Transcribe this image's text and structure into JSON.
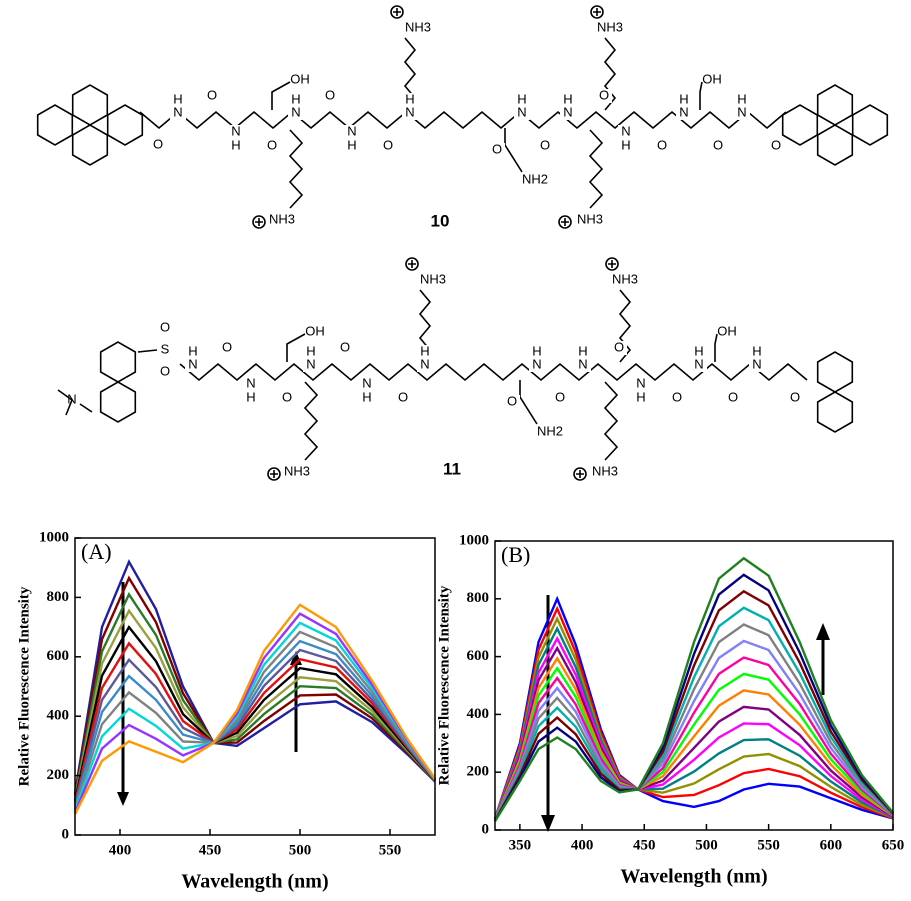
{
  "structures": [
    {
      "label": "10",
      "atoms": [
        "H",
        "N",
        "O",
        "H",
        "N",
        "OH",
        "O",
        "H",
        "N",
        "O",
        "H",
        "N",
        "O",
        "H",
        "N",
        "NH3",
        "NH3",
        "O",
        "NH2",
        "H",
        "N",
        "O",
        "H",
        "N",
        "O",
        "H",
        "N",
        "O",
        "H",
        "N",
        "OH",
        "O",
        "H",
        "N",
        "NH3",
        "NH3",
        "O",
        "O"
      ]
    },
    {
      "label": "11",
      "atoms": [
        "H",
        "N",
        "O",
        "H",
        "N",
        "OH",
        "O",
        "H",
        "N",
        "O",
        "H",
        "N",
        "O",
        "H",
        "N",
        "NH3",
        "NH3",
        "O",
        "NH2",
        "H",
        "N",
        "O",
        "H",
        "N",
        "O",
        "H",
        "N",
        "O",
        "H",
        "N",
        "OH",
        "O",
        "H",
        "N",
        "NH3",
        "NH3",
        "S",
        "O",
        "O",
        "N",
        "O"
      ]
    }
  ],
  "chart_data": [
    {
      "type": "line",
      "annotation": "(A)",
      "x_label": "Wavelength (nm)",
      "y_label": "Relative Fluorescence Intensity",
      "x": [
        375,
        390,
        405,
        420,
        435,
        452,
        465,
        480,
        500,
        520,
        540,
        560,
        575
      ],
      "xlim": [
        375,
        575
      ],
      "ylim": [
        0,
        1000
      ],
      "xticks": [
        400,
        450,
        500,
        550
      ],
      "yticks": [
        0,
        200,
        400,
        600,
        800,
        1000
      ],
      "series": [
        {
          "color": "#1f1fa0",
          "values": [
            140,
            700,
            920,
            760,
            500,
            310,
            300,
            360,
            440,
            450,
            380,
            270,
            180
          ]
        },
        {
          "color": "#800000",
          "values": [
            134,
            659,
            865,
            716,
            477,
            310,
            311,
            384,
            470,
            473,
            393,
            275,
            181
          ]
        },
        {
          "color": "#2a7a2a",
          "values": [
            127,
            618,
            810,
            673,
            454,
            310,
            322,
            407,
            501,
            495,
            405,
            279,
            182
          ]
        },
        {
          "color": "#9aa040",
          "values": [
            121,
            577,
            755,
            629,
            430,
            310,
            333,
            431,
            531,
            518,
            418,
            284,
            183
          ]
        },
        {
          "color": "#000000",
          "values": [
            115,
            536,
            700,
            585,
            407,
            310,
            344,
            455,
            562,
            541,
            431,
            288,
            184
          ]
        },
        {
          "color": "#e01010",
          "values": [
            108,
            495,
            645,
            542,
            384,
            310,
            355,
            478,
            592,
            564,
            444,
            293,
            185
          ]
        },
        {
          "color": "#5a5a9a",
          "values": [
            102,
            455,
            590,
            498,
            361,
            310,
            365,
            502,
            623,
            586,
            456,
            297,
            185
          ]
        },
        {
          "color": "#3a8ac8",
          "values": [
            95,
            414,
            535,
            455,
            338,
            310,
            376,
            525,
            653,
            609,
            469,
            302,
            186
          ]
        },
        {
          "color": "#808080",
          "values": [
            89,
            373,
            480,
            411,
            315,
            310,
            387,
            549,
            684,
            632,
            482,
            306,
            187
          ]
        },
        {
          "color": "#00d8d8",
          "values": [
            83,
            332,
            425,
            367,
            291,
            310,
            398,
            573,
            714,
            655,
            495,
            311,
            188
          ]
        },
        {
          "color": "#9933ff",
          "values": [
            76,
            291,
            370,
            324,
            268,
            310,
            409,
            596,
            745,
            677,
            507,
            315,
            189
          ]
        },
        {
          "color": "#ff9900",
          "values": [
            70,
            250,
            315,
            280,
            245,
            310,
            420,
            620,
            775,
            700,
            520,
            320,
            190
          ]
        }
      ]
    },
    {
      "type": "line",
      "annotation": "(B)",
      "x_label": "Wavelength (nm)",
      "y_label": "Relative Fluorescence Intensity",
      "x": [
        330,
        350,
        365,
        380,
        395,
        415,
        430,
        445,
        465,
        490,
        510,
        530,
        550,
        575,
        600,
        625,
        650
      ],
      "xlim": [
        330,
        650
      ],
      "ylim": [
        0,
        1000
      ],
      "xticks": [
        350,
        400,
        450,
        500,
        550,
        600,
        650
      ],
      "yticks": [
        0,
        200,
        400,
        600,
        800,
        1000
      ],
      "series": [
        {
          "color": "#0000ff",
          "values": [
            40,
            300,
            650,
            800,
            640,
            350,
            190,
            140,
            100,
            80,
            100,
            140,
            160,
            150,
            110,
            70,
            40
          ]
        },
        {
          "color": "#ff0000",
          "values": [
            39,
            291,
            624,
            766,
            614,
            337,
            186,
            140,
            114,
            121,
            155,
            197,
            211,
            186,
            129,
            79,
            41
          ]
        },
        {
          "color": "#909000",
          "values": [
            39,
            281,
            597,
            731,
            589,
            324,
            181,
            140,
            129,
            161,
            210,
            254,
            263,
            221,
            149,
            87,
            43
          ]
        },
        {
          "color": "#008080",
          "values": [
            38,
            272,
            571,
            697,
            563,
            311,
            177,
            140,
            143,
            202,
            265,
            311,
            314,
            257,
            168,
            96,
            44
          ]
        },
        {
          "color": "#ff00ff",
          "values": [
            37,
            263,
            544,
            663,
            537,
            299,
            173,
            140,
            157,
            243,
            320,
            369,
            366,
            293,
            187,
            104,
            46
          ]
        },
        {
          "color": "#800080",
          "values": [
            36,
            254,
            518,
            629,
            511,
            286,
            169,
            140,
            171,
            284,
            375,
            426,
            417,
            329,
            206,
            113,
            47
          ]
        },
        {
          "color": "#ff8000",
          "values": [
            36,
            244,
            491,
            594,
            486,
            273,
            164,
            140,
            186,
            324,
            430,
            483,
            469,
            364,
            226,
            121,
            49
          ]
        },
        {
          "color": "#00ff00",
          "values": [
            35,
            235,
            465,
            560,
            460,
            260,
            160,
            140,
            200,
            365,
            485,
            540,
            520,
            400,
            245,
            130,
            50
          ]
        },
        {
          "color": "#ff00a0",
          "values": [
            34,
            226,
            439,
            526,
            434,
            247,
            156,
            140,
            214,
            406,
            540,
            597,
            571,
            436,
            264,
            139,
            51
          ]
        },
        {
          "color": "#8080ff",
          "values": [
            34,
            216,
            412,
            491,
            409,
            234,
            151,
            140,
            229,
            446,
            595,
            654,
            623,
            471,
            284,
            147,
            53
          ]
        },
        {
          "color": "#808080",
          "values": [
            33,
            207,
            386,
            457,
            383,
            221,
            147,
            140,
            243,
            487,
            650,
            711,
            674,
            507,
            303,
            156,
            54
          ]
        },
        {
          "color": "#00b0b0",
          "values": [
            32,
            198,
            359,
            423,
            357,
            209,
            143,
            140,
            257,
            528,
            705,
            769,
            726,
            543,
            322,
            164,
            56
          ]
        },
        {
          "color": "#800000",
          "values": [
            31,
            189,
            333,
            389,
            331,
            196,
            139,
            140,
            271,
            569,
            760,
            826,
            777,
            579,
            341,
            173,
            57
          ]
        },
        {
          "color": "#000080",
          "values": [
            31,
            179,
            306,
            354,
            306,
            183,
            134,
            140,
            286,
            609,
            815,
            883,
            829,
            614,
            361,
            181,
            59
          ]
        },
        {
          "color": "#208020",
          "values": [
            30,
            170,
            280,
            320,
            280,
            170,
            130,
            140,
            300,
            650,
            870,
            940,
            880,
            650,
            380,
            190,
            60
          ]
        }
      ]
    }
  ]
}
